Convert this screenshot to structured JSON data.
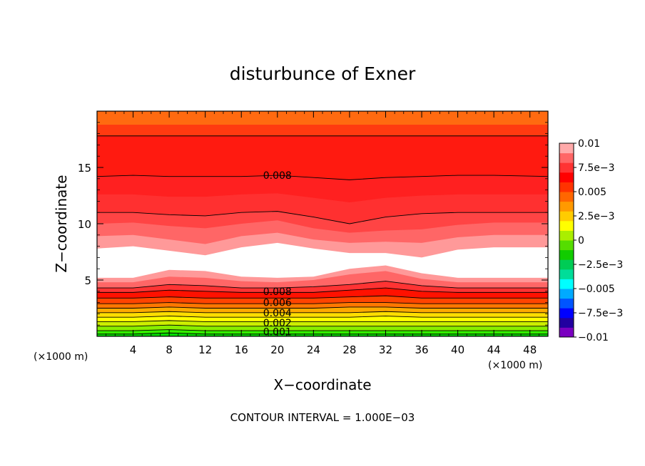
{
  "chart_data": {
    "type": "heatmap",
    "title": "disturbunce of Exner",
    "xlabel": "X−coordinate",
    "ylabel": "Z−coordinate",
    "x_unit_left": "(×1000 m)",
    "x_unit_right": "(×1000 m)",
    "footer": "CONTOUR INTERVAL = 1.000E−03",
    "xlim": [
      0,
      50
    ],
    "ylim": [
      0,
      20
    ],
    "xticks": [
      4,
      8,
      12,
      16,
      20,
      24,
      28,
      32,
      36,
      40,
      44,
      48
    ],
    "xtick_labels": [
      "4",
      "8",
      "12",
      "16",
      "20",
      "24",
      "28",
      "32",
      "36",
      "40",
      "44",
      "48"
    ],
    "yticks": [
      5,
      10,
      15
    ],
    "ytick_labels": [
      "5",
      "10",
      "15"
    ],
    "contour_labels": [
      {
        "text": "0.008",
        "x": 20,
        "z": 14.3
      },
      {
        "text": "0.008",
        "x": 20,
        "z": 4.0
      },
      {
        "text": "0.006",
        "x": 20,
        "z": 3.0
      },
      {
        "text": "0.004",
        "x": 20,
        "z": 2.1
      },
      {
        "text": "0.002",
        "x": 20,
        "z": 1.2
      },
      {
        "text": "0.001",
        "x": 20,
        "z": 0.4
      }
    ],
    "colorbar": {
      "range": [
        -0.01,
        0.01
      ],
      "tick_labels": [
        "0.01",
        "7.5e−3",
        "0.005",
        "2.5e−3",
        "0",
        "−2.5e−3",
        "−0.005",
        "−7.5e−3",
        "−0.01"
      ],
      "colors": [
        "#7a00c0",
        "#2200a0",
        "#0000ff",
        "#0055ff",
        "#00aaff",
        "#00ffff",
        "#00dd99",
        "#00cc55",
        "#11cc00",
        "#55dd00",
        "#aaee00",
        "#ffff00",
        "#ffcc00",
        "#ff9900",
        "#ff6600",
        "#ff3300",
        "#ff0000",
        "#ff3333",
        "#ff6666",
        "#ffaaaa"
      ]
    },
    "bands_bottom_to_top": [
      {
        "color": "#00dd00",
        "top": [
          0.2,
          0.2,
          0.3,
          0.2,
          0.2,
          0.2,
          0.2,
          0.2,
          0.2,
          0.2,
          0.2,
          0.2,
          0.2
        ]
      },
      {
        "color": "#33ee00",
        "top": [
          0.5,
          0.5,
          0.6,
          0.5,
          0.5,
          0.5,
          0.5,
          0.5,
          0.5,
          0.5,
          0.5,
          0.5,
          0.5
        ]
      },
      {
        "color": "#88ee00",
        "top": [
          0.9,
          0.9,
          1.0,
          0.9,
          0.9,
          0.9,
          0.9,
          0.9,
          0.9,
          0.9,
          0.9,
          0.9,
          0.9
        ]
      },
      {
        "color": "#ccee00",
        "top": [
          1.3,
          1.3,
          1.4,
          1.3,
          1.3,
          1.3,
          1.3,
          1.3,
          1.3,
          1.3,
          1.3,
          1.3,
          1.3
        ]
      },
      {
        "color": "#ffff00",
        "top": [
          1.7,
          1.7,
          1.8,
          1.7,
          1.7,
          1.7,
          1.7,
          1.7,
          1.8,
          1.7,
          1.7,
          1.7,
          1.7
        ]
      },
      {
        "color": "#ffdd00",
        "top": [
          2.1,
          2.1,
          2.2,
          2.1,
          2.1,
          2.1,
          2.1,
          2.1,
          2.2,
          2.1,
          2.1,
          2.1,
          2.1
        ]
      },
      {
        "color": "#ffaa00",
        "top": [
          2.5,
          2.5,
          2.6,
          2.5,
          2.5,
          2.5,
          2.5,
          2.6,
          2.6,
          2.5,
          2.5,
          2.5,
          2.5
        ]
      },
      {
        "color": "#ff7700",
        "top": [
          2.9,
          2.9,
          3.0,
          2.9,
          2.9,
          2.9,
          2.9,
          3.0,
          3.0,
          2.9,
          2.9,
          2.9,
          2.9
        ]
      },
      {
        "color": "#ff4400",
        "top": [
          3.4,
          3.4,
          3.5,
          3.4,
          3.4,
          3.4,
          3.4,
          3.5,
          3.6,
          3.4,
          3.4,
          3.4,
          3.4
        ]
      },
      {
        "color": "#ff1100",
        "top": [
          3.9,
          3.9,
          4.1,
          4.0,
          3.9,
          3.9,
          3.9,
          4.1,
          4.3,
          4.0,
          3.9,
          3.9,
          3.9
        ]
      },
      {
        "color": "#ff3333",
        "top": [
          4.3,
          4.3,
          4.6,
          4.5,
          4.3,
          4.3,
          4.4,
          4.6,
          4.9,
          4.5,
          4.3,
          4.3,
          4.3
        ]
      },
      {
        "color": "#ff6666",
        "top": [
          4.8,
          4.8,
          5.3,
          5.2,
          4.9,
          4.8,
          5.0,
          5.5,
          5.8,
          5.1,
          4.8,
          4.8,
          4.8
        ]
      },
      {
        "color": "#ff9999",
        "top": [
          5.2,
          5.2,
          5.9,
          5.8,
          5.3,
          5.2,
          5.3,
          6.0,
          6.3,
          5.6,
          5.2,
          5.2,
          5.2
        ]
      },
      {
        "color": "#ffffff",
        "top": [
          7.8,
          8.0,
          7.6,
          7.2,
          7.9,
          8.3,
          7.8,
          7.4,
          7.4,
          7.0,
          7.7,
          7.9,
          7.9
        ]
      },
      {
        "color": "#ff9999",
        "top": [
          8.9,
          9.0,
          8.6,
          8.2,
          8.9,
          9.2,
          8.6,
          8.3,
          8.4,
          8.3,
          8.8,
          9.0,
          9.0
        ]
      },
      {
        "color": "#ff6666",
        "top": [
          10.0,
          10.1,
          9.8,
          9.6,
          10.0,
          10.3,
          9.6,
          9.2,
          9.4,
          9.5,
          9.9,
          10.1,
          10.1
        ]
      },
      {
        "color": "#ff4444",
        "top": [
          11.0,
          11.0,
          10.8,
          10.7,
          11.0,
          11.1,
          10.6,
          10.0,
          10.6,
          10.9,
          11.0,
          11.0,
          11.0
        ]
      },
      {
        "color": "#ff3030",
        "top": [
          12.6,
          12.6,
          12.4,
          12.4,
          12.6,
          12.7,
          12.3,
          11.9,
          12.3,
          12.5,
          12.6,
          12.6,
          12.6
        ]
      },
      {
        "color": "#ff2020",
        "top": [
          14.2,
          14.3,
          14.2,
          14.2,
          14.2,
          14.3,
          14.1,
          13.9,
          14.1,
          14.2,
          14.3,
          14.3,
          14.2
        ]
      },
      {
        "color": "#ff1a10",
        "top": [
          17.8,
          17.8,
          17.8,
          17.8,
          17.8,
          17.8,
          17.8,
          17.8,
          17.8,
          17.8,
          17.8,
          17.8,
          17.8
        ]
      },
      {
        "color": "#ff3a10",
        "top": [
          18.8,
          18.8,
          18.8,
          18.8,
          18.8,
          18.8,
          18.8,
          18.8,
          18.8,
          18.8,
          18.8,
          18.8,
          18.8
        ]
      },
      {
        "color": "#ff6a10",
        "top": [
          20.0,
          20.0,
          20.0,
          20.0,
          20.0,
          20.0,
          20.0,
          20.0,
          20.0,
          20.0,
          20.0,
          20.0,
          20.0
        ]
      }
    ],
    "band_x": [
      0,
      4,
      8,
      12,
      16,
      20,
      24,
      28,
      32,
      36,
      40,
      44,
      50
    ],
    "contour_lines": [
      {
        "z": [
          0.2,
          0.2,
          0.3,
          0.2,
          0.2,
          0.2,
          0.2,
          0.2,
          0.2,
          0.2,
          0.2,
          0.2,
          0.2
        ]
      },
      {
        "z": [
          0.5,
          0.5,
          0.6,
          0.5,
          0.5,
          0.5,
          0.5,
          0.5,
          0.5,
          0.5,
          0.5,
          0.5,
          0.5
        ]
      },
      {
        "z": [
          0.9,
          0.9,
          1.0,
          0.9,
          0.9,
          0.9,
          0.9,
          0.9,
          0.9,
          0.9,
          0.9,
          0.9,
          0.9
        ]
      },
      {
        "z": [
          1.3,
          1.3,
          1.4,
          1.3,
          1.3,
          1.3,
          1.3,
          1.3,
          1.3,
          1.3,
          1.3,
          1.3,
          1.3
        ]
      },
      {
        "z": [
          1.7,
          1.7,
          1.8,
          1.7,
          1.7,
          1.7,
          1.7,
          1.7,
          1.8,
          1.7,
          1.7,
          1.7,
          1.7
        ]
      },
      {
        "z": [
          2.1,
          2.1,
          2.2,
          2.1,
          2.1,
          2.1,
          2.1,
          2.1,
          2.2,
          2.1,
          2.1,
          2.1,
          2.1
        ]
      },
      {
        "z": [
          2.5,
          2.5,
          2.6,
          2.5,
          2.5,
          2.5,
          2.5,
          2.6,
          2.6,
          2.5,
          2.5,
          2.5,
          2.5
        ]
      },
      {
        "z": [
          2.9,
          2.9,
          3.0,
          2.9,
          2.9,
          2.9,
          2.9,
          3.0,
          3.0,
          2.9,
          2.9,
          2.9,
          2.9
        ]
      },
      {
        "z": [
          3.4,
          3.4,
          3.5,
          3.4,
          3.4,
          3.4,
          3.4,
          3.5,
          3.6,
          3.4,
          3.4,
          3.4,
          3.4
        ]
      },
      {
        "z": [
          3.9,
          3.9,
          4.1,
          4.0,
          3.9,
          3.9,
          3.9,
          4.1,
          4.3,
          4.0,
          3.9,
          3.9,
          3.9
        ]
      },
      {
        "z": [
          4.3,
          4.3,
          4.6,
          4.5,
          4.3,
          4.3,
          4.4,
          4.6,
          4.9,
          4.5,
          4.3,
          4.3,
          4.3
        ]
      },
      {
        "z": [
          11.0,
          11.0,
          10.8,
          10.7,
          11.0,
          11.1,
          10.6,
          10.0,
          10.6,
          10.9,
          11.0,
          11.0,
          11.0
        ]
      },
      {
        "z": [
          14.2,
          14.3,
          14.2,
          14.2,
          14.2,
          14.3,
          14.1,
          13.9,
          14.1,
          14.2,
          14.3,
          14.3,
          14.2
        ]
      },
      {
        "z": [
          17.8,
          17.8,
          17.8,
          17.8,
          17.8,
          17.8,
          17.8,
          17.8,
          17.8,
          17.8,
          17.8,
          17.8,
          17.8
        ]
      }
    ],
    "grid": false,
    "legend": "right"
  }
}
